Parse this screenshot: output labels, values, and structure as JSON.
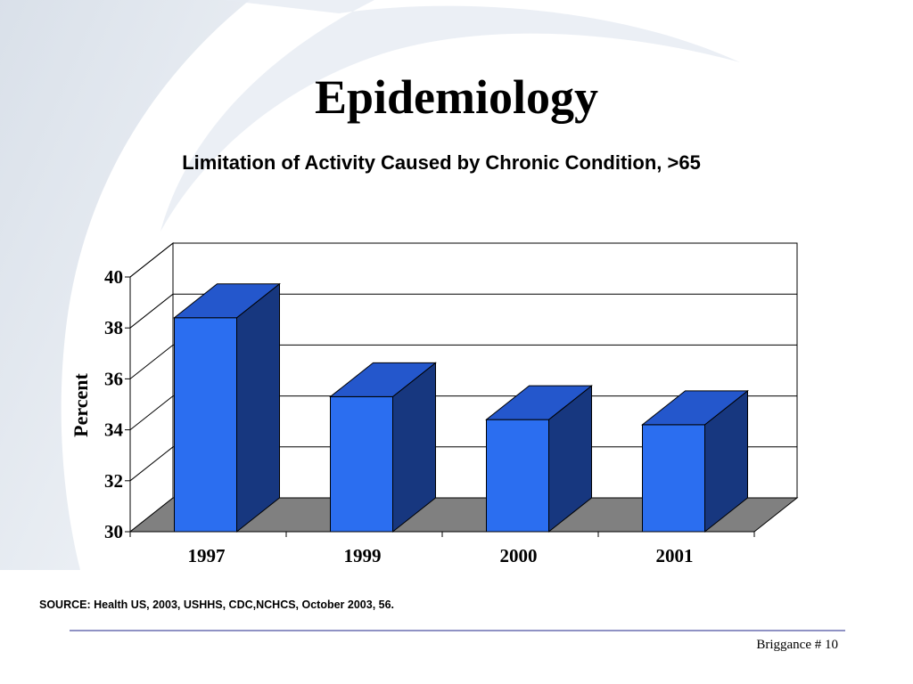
{
  "slide": {
    "title": "Epidemiology",
    "source": "SOURCE: Health US, 2003, USHHS, CDC,NCHCS, October 2003,  56.",
    "page_number": "Briggance # 10"
  },
  "colors": {
    "bar_front": "#2b6ef0",
    "bar_top": "#2457cc",
    "bar_side": "#17377f",
    "floor": "#808080",
    "footer_rule": "#8f92c4"
  },
  "chart_data": {
    "type": "bar",
    "title": "Limitation of Activity Caused by Chronic Condition, >65",
    "xlabel": "",
    "ylabel": "Percent",
    "categories": [
      "1997",
      "1999",
      "2000",
      "2001"
    ],
    "values": [
      38.4,
      35.3,
      34.4,
      34.2
    ],
    "ylim": [
      30,
      40
    ],
    "yticks": [
      "30",
      "32",
      "34",
      "36",
      "38",
      "40"
    ],
    "grid": true,
    "style": "3d"
  }
}
